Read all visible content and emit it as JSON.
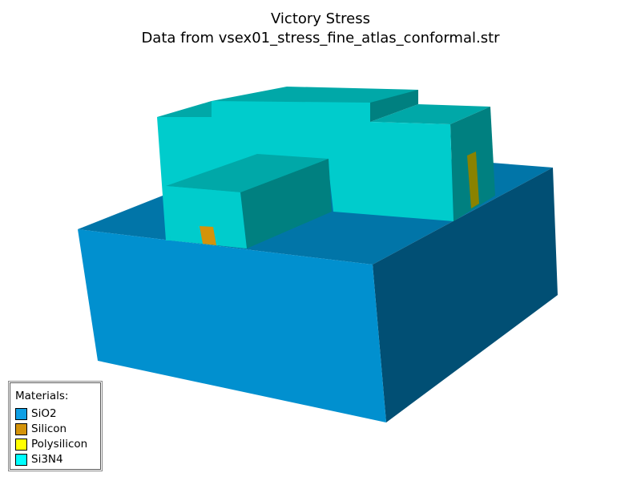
{
  "plot": {
    "title": "Victory Stress",
    "subtitle": "Data from vsex01_stress_fine_atlas_conformal.str"
  },
  "legend": {
    "title": "Materials:",
    "items": [
      {
        "label": "SiO2",
        "color": "#0f9fe4"
      },
      {
        "label": "Silicon",
        "color": "#d4930a"
      },
      {
        "label": "Polysilicon",
        "color": "#ffff00"
      },
      {
        "label": "Si3N4",
        "color": "#00ffff"
      }
    ]
  }
}
